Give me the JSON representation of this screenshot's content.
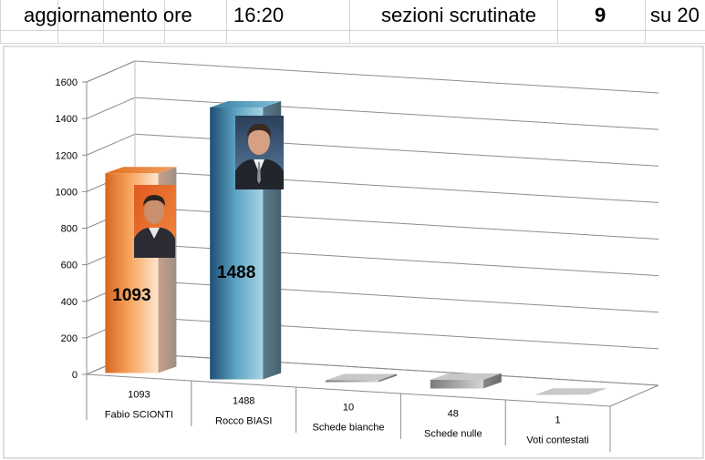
{
  "header": {
    "update_label": "aggiornamento ore",
    "update_time": "16:20",
    "sections_label": "sezioni scrutinate",
    "sections_count": "9",
    "sections_total": "su 20"
  },
  "chart_data": {
    "type": "bar",
    "categories": [
      "Fabio SCIONTI",
      "Rocco BIASI",
      "Schede bianche",
      "Schede nulle",
      "Voti contestati"
    ],
    "values": [
      1093,
      1488,
      10,
      48,
      1
    ],
    "value_labels": [
      "1093",
      "1488",
      "10",
      "48",
      "1"
    ],
    "bar_data_labels": [
      "1093",
      "1488"
    ],
    "ylim": [
      0,
      1600
    ],
    "yticks": [
      "0",
      "200",
      "400",
      "600",
      "800",
      "1000",
      "1200",
      "1400",
      "1600"
    ],
    "grid": true,
    "legend": "none",
    "colors": {
      "Fabio SCIONTI": "#e8742a",
      "Rocco BIASI": "#4a98b8",
      "others": "#9a9a9a"
    }
  }
}
